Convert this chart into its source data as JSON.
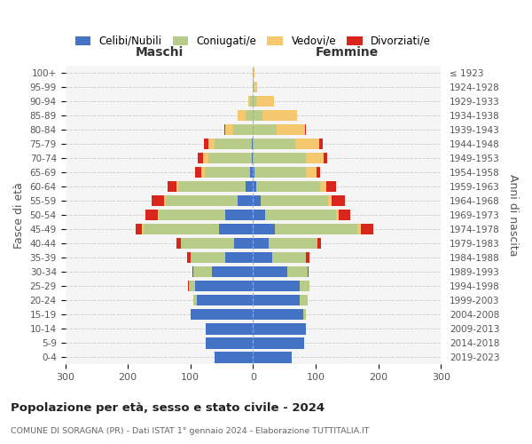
{
  "age_groups": [
    "100+",
    "95-99",
    "90-94",
    "85-89",
    "80-84",
    "75-79",
    "70-74",
    "65-69",
    "60-64",
    "55-59",
    "50-54",
    "45-49",
    "40-44",
    "35-39",
    "30-34",
    "25-29",
    "20-24",
    "15-19",
    "10-14",
    "5-9",
    "0-4"
  ],
  "birth_years": [
    "≤ 1923",
    "1924-1928",
    "1929-1933",
    "1934-1938",
    "1939-1943",
    "1944-1948",
    "1949-1953",
    "1954-1958",
    "1959-1963",
    "1964-1968",
    "1969-1973",
    "1974-1978",
    "1979-1983",
    "1984-1988",
    "1989-1993",
    "1994-1998",
    "1999-2003",
    "2004-2008",
    "2009-2013",
    "2014-2018",
    "2019-2023"
  ],
  "male_celibi": [
    0,
    0,
    0,
    0,
    0,
    2,
    2,
    5,
    12,
    25,
    45,
    55,
    30,
    45,
    65,
    92,
    90,
    100,
    75,
    75,
    62
  ],
  "male_coniugati": [
    0,
    0,
    5,
    12,
    32,
    60,
    70,
    72,
    108,
    115,
    105,
    120,
    85,
    55,
    30,
    10,
    5,
    0,
    0,
    0,
    0
  ],
  "male_vedovi": [
    0,
    0,
    2,
    12,
    12,
    10,
    8,
    5,
    2,
    2,
    2,
    2,
    0,
    0,
    0,
    0,
    0,
    0,
    0,
    0,
    0
  ],
  "male_divorziati": [
    0,
    0,
    0,
    0,
    2,
    6,
    8,
    10,
    15,
    20,
    20,
    10,
    8,
    5,
    2,
    2,
    0,
    0,
    0,
    0,
    0
  ],
  "female_nubili": [
    0,
    0,
    0,
    0,
    0,
    0,
    0,
    2,
    5,
    12,
    20,
    35,
    25,
    30,
    55,
    75,
    75,
    80,
    85,
    82,
    62
  ],
  "female_coniugate": [
    0,
    2,
    5,
    15,
    38,
    68,
    85,
    82,
    102,
    108,
    112,
    132,
    78,
    55,
    32,
    15,
    12,
    5,
    0,
    0,
    0
  ],
  "female_vedove": [
    2,
    5,
    28,
    55,
    45,
    38,
    28,
    18,
    10,
    5,
    5,
    5,
    0,
    0,
    0,
    0,
    0,
    0,
    0,
    0,
    0
  ],
  "female_divorziate": [
    0,
    0,
    0,
    0,
    2,
    5,
    5,
    5,
    15,
    22,
    18,
    20,
    5,
    5,
    2,
    0,
    0,
    0,
    0,
    0,
    0
  ],
  "color_celibi": "#4472c4",
  "color_coniugati": "#b8cc8a",
  "color_vedovi": "#f5c76e",
  "color_divorziati": "#d9261c",
  "title": "Popolazione per età, sesso e stato civile - 2024",
  "subtitle": "COMUNE DI SORAGNA (PR) - Dati ISTAT 1° gennaio 2024 - Elaborazione TUTTITALIA.IT",
  "maschi_label": "Maschi",
  "femmine_label": "Femmine",
  "ylabel_left": "Fasce di età",
  "ylabel_right": "Anni di nascita",
  "legend_labels": [
    "Celibi/Nubili",
    "Coniugati/e",
    "Vedovi/e",
    "Divorziati/e"
  ],
  "xlim": 300,
  "bg_plot": "#f5f5f5",
  "bg_fig": "#ffffff"
}
